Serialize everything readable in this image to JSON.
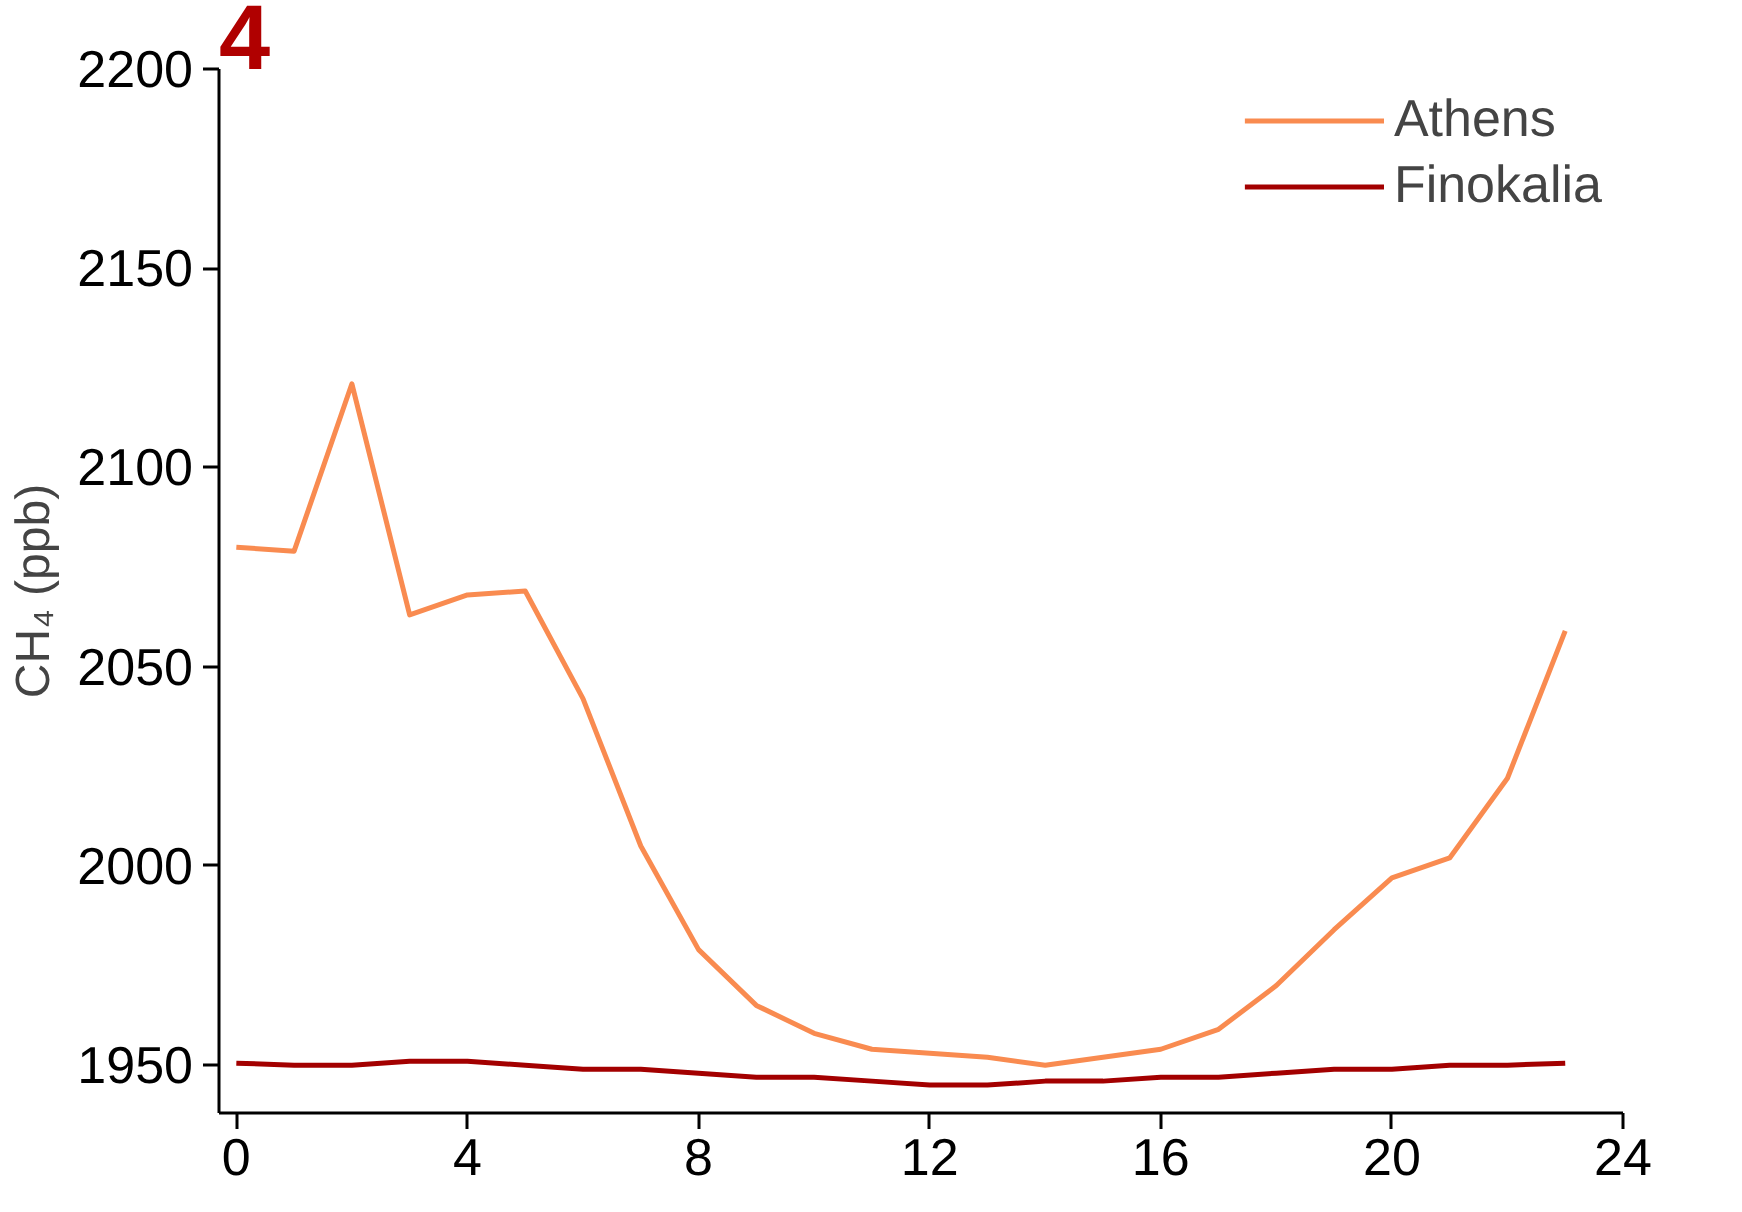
{
  "chart_data": {
    "type": "line",
    "ylabel": "CH₄ (ppb)",
    "annotations": [
      "4"
    ],
    "x": [
      0,
      1,
      2,
      3,
      4,
      5,
      6,
      7,
      8,
      9,
      10,
      11,
      12,
      13,
      14,
      15,
      16,
      17,
      18,
      19,
      20,
      21,
      22,
      23
    ],
    "series": [
      {
        "name": "Athens",
        "color": "#f98b50",
        "values": [
          2080,
          2079,
          2121,
          2063,
          2068,
          2069,
          2042,
          2005,
          1979,
          1965,
          1958,
          1954,
          1953,
          1952,
          1950,
          1952,
          1954,
          1959,
          1970,
          1984,
          1997,
          2002,
          2022,
          2059
        ]
      },
      {
        "name": "Finokalia",
        "color": "#a30000",
        "values": [
          1950.5,
          1950,
          1950,
          1951,
          1951,
          1950,
          1949,
          1949,
          1948,
          1947,
          1947,
          1946,
          1945,
          1945,
          1946,
          1946,
          1947,
          1947,
          1948,
          1949,
          1949,
          1950,
          1950,
          1950.5
        ]
      }
    ],
    "xlim": [
      -0.3,
      24
    ],
    "xticks": [
      0,
      4,
      8,
      12,
      16,
      20,
      24
    ],
    "ylim": [
      1938,
      2200
    ],
    "yticks": [
      1950,
      2000,
      2050,
      2100,
      2150,
      2200
    ],
    "legend": "top right",
    "grid": false,
    "line_style": "solid",
    "marker": "none"
  }
}
